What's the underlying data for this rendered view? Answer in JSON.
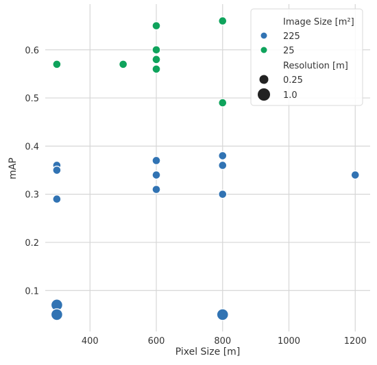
{
  "chart_data": {
    "type": "scatter",
    "xlabel": "Pixel Size [m]",
    "ylabel": "mAP",
    "xlim": [
      265,
      1245
    ],
    "ylim": [
      0.015,
      0.695
    ],
    "xticks": [
      400,
      600,
      800,
      1000,
      1200
    ],
    "xtick_labels": [
      "400",
      "600",
      "800",
      "1000",
      "1200"
    ],
    "yticks": [
      0.1,
      0.2,
      0.3,
      0.4,
      0.5,
      0.6
    ],
    "ytick_labels": [
      "0.1",
      "0.2",
      "0.3",
      "0.4",
      "0.5",
      "0.6"
    ],
    "grid": true,
    "legend_position": "top-right",
    "legend": {
      "hue_title": "Image Size [m²]",
      "hue_entries": [
        {
          "label": "225",
          "color": "#3173b3"
        },
        {
          "label": "25",
          "color": "#0fa35c"
        }
      ],
      "size_title": "Resolution [m]",
      "size_entries": [
        {
          "label": "0.25",
          "size": 0.25
        },
        {
          "label": "1.0",
          "size": 1.0
        }
      ]
    },
    "series": [
      {
        "image_size": "225",
        "color": "#3173b3",
        "points": [
          {
            "x": 300,
            "y": 0.36,
            "resolution": 0.25
          },
          {
            "x": 300,
            "y": 0.35,
            "resolution": 0.25
          },
          {
            "x": 300,
            "y": 0.29,
            "resolution": 0.25
          },
          {
            "x": 300,
            "y": 0.07,
            "resolution": 1.0
          },
          {
            "x": 300,
            "y": 0.05,
            "resolution": 1.0
          },
          {
            "x": 600,
            "y": 0.37,
            "resolution": 0.25
          },
          {
            "x": 600,
            "y": 0.34,
            "resolution": 0.25
          },
          {
            "x": 600,
            "y": 0.31,
            "resolution": 0.25
          },
          {
            "x": 800,
            "y": 0.38,
            "resolution": 0.25
          },
          {
            "x": 800,
            "y": 0.36,
            "resolution": 0.25
          },
          {
            "x": 800,
            "y": 0.3,
            "resolution": 0.25
          },
          {
            "x": 800,
            "y": 0.05,
            "resolution": 1.0
          },
          {
            "x": 1200,
            "y": 0.34,
            "resolution": 0.25
          }
        ]
      },
      {
        "image_size": "25",
        "color": "#0fa35c",
        "points": [
          {
            "x": 300,
            "y": 0.57,
            "resolution": 0.25
          },
          {
            "x": 500,
            "y": 0.57,
            "resolution": 0.25
          },
          {
            "x": 600,
            "y": 0.65,
            "resolution": 0.25
          },
          {
            "x": 600,
            "y": 0.6,
            "resolution": 0.25
          },
          {
            "x": 600,
            "y": 0.58,
            "resolution": 0.25
          },
          {
            "x": 600,
            "y": 0.56,
            "resolution": 0.25
          },
          {
            "x": 800,
            "y": 0.66,
            "resolution": 0.25
          },
          {
            "x": 800,
            "y": 0.49,
            "resolution": 0.25
          }
        ]
      }
    ]
  }
}
